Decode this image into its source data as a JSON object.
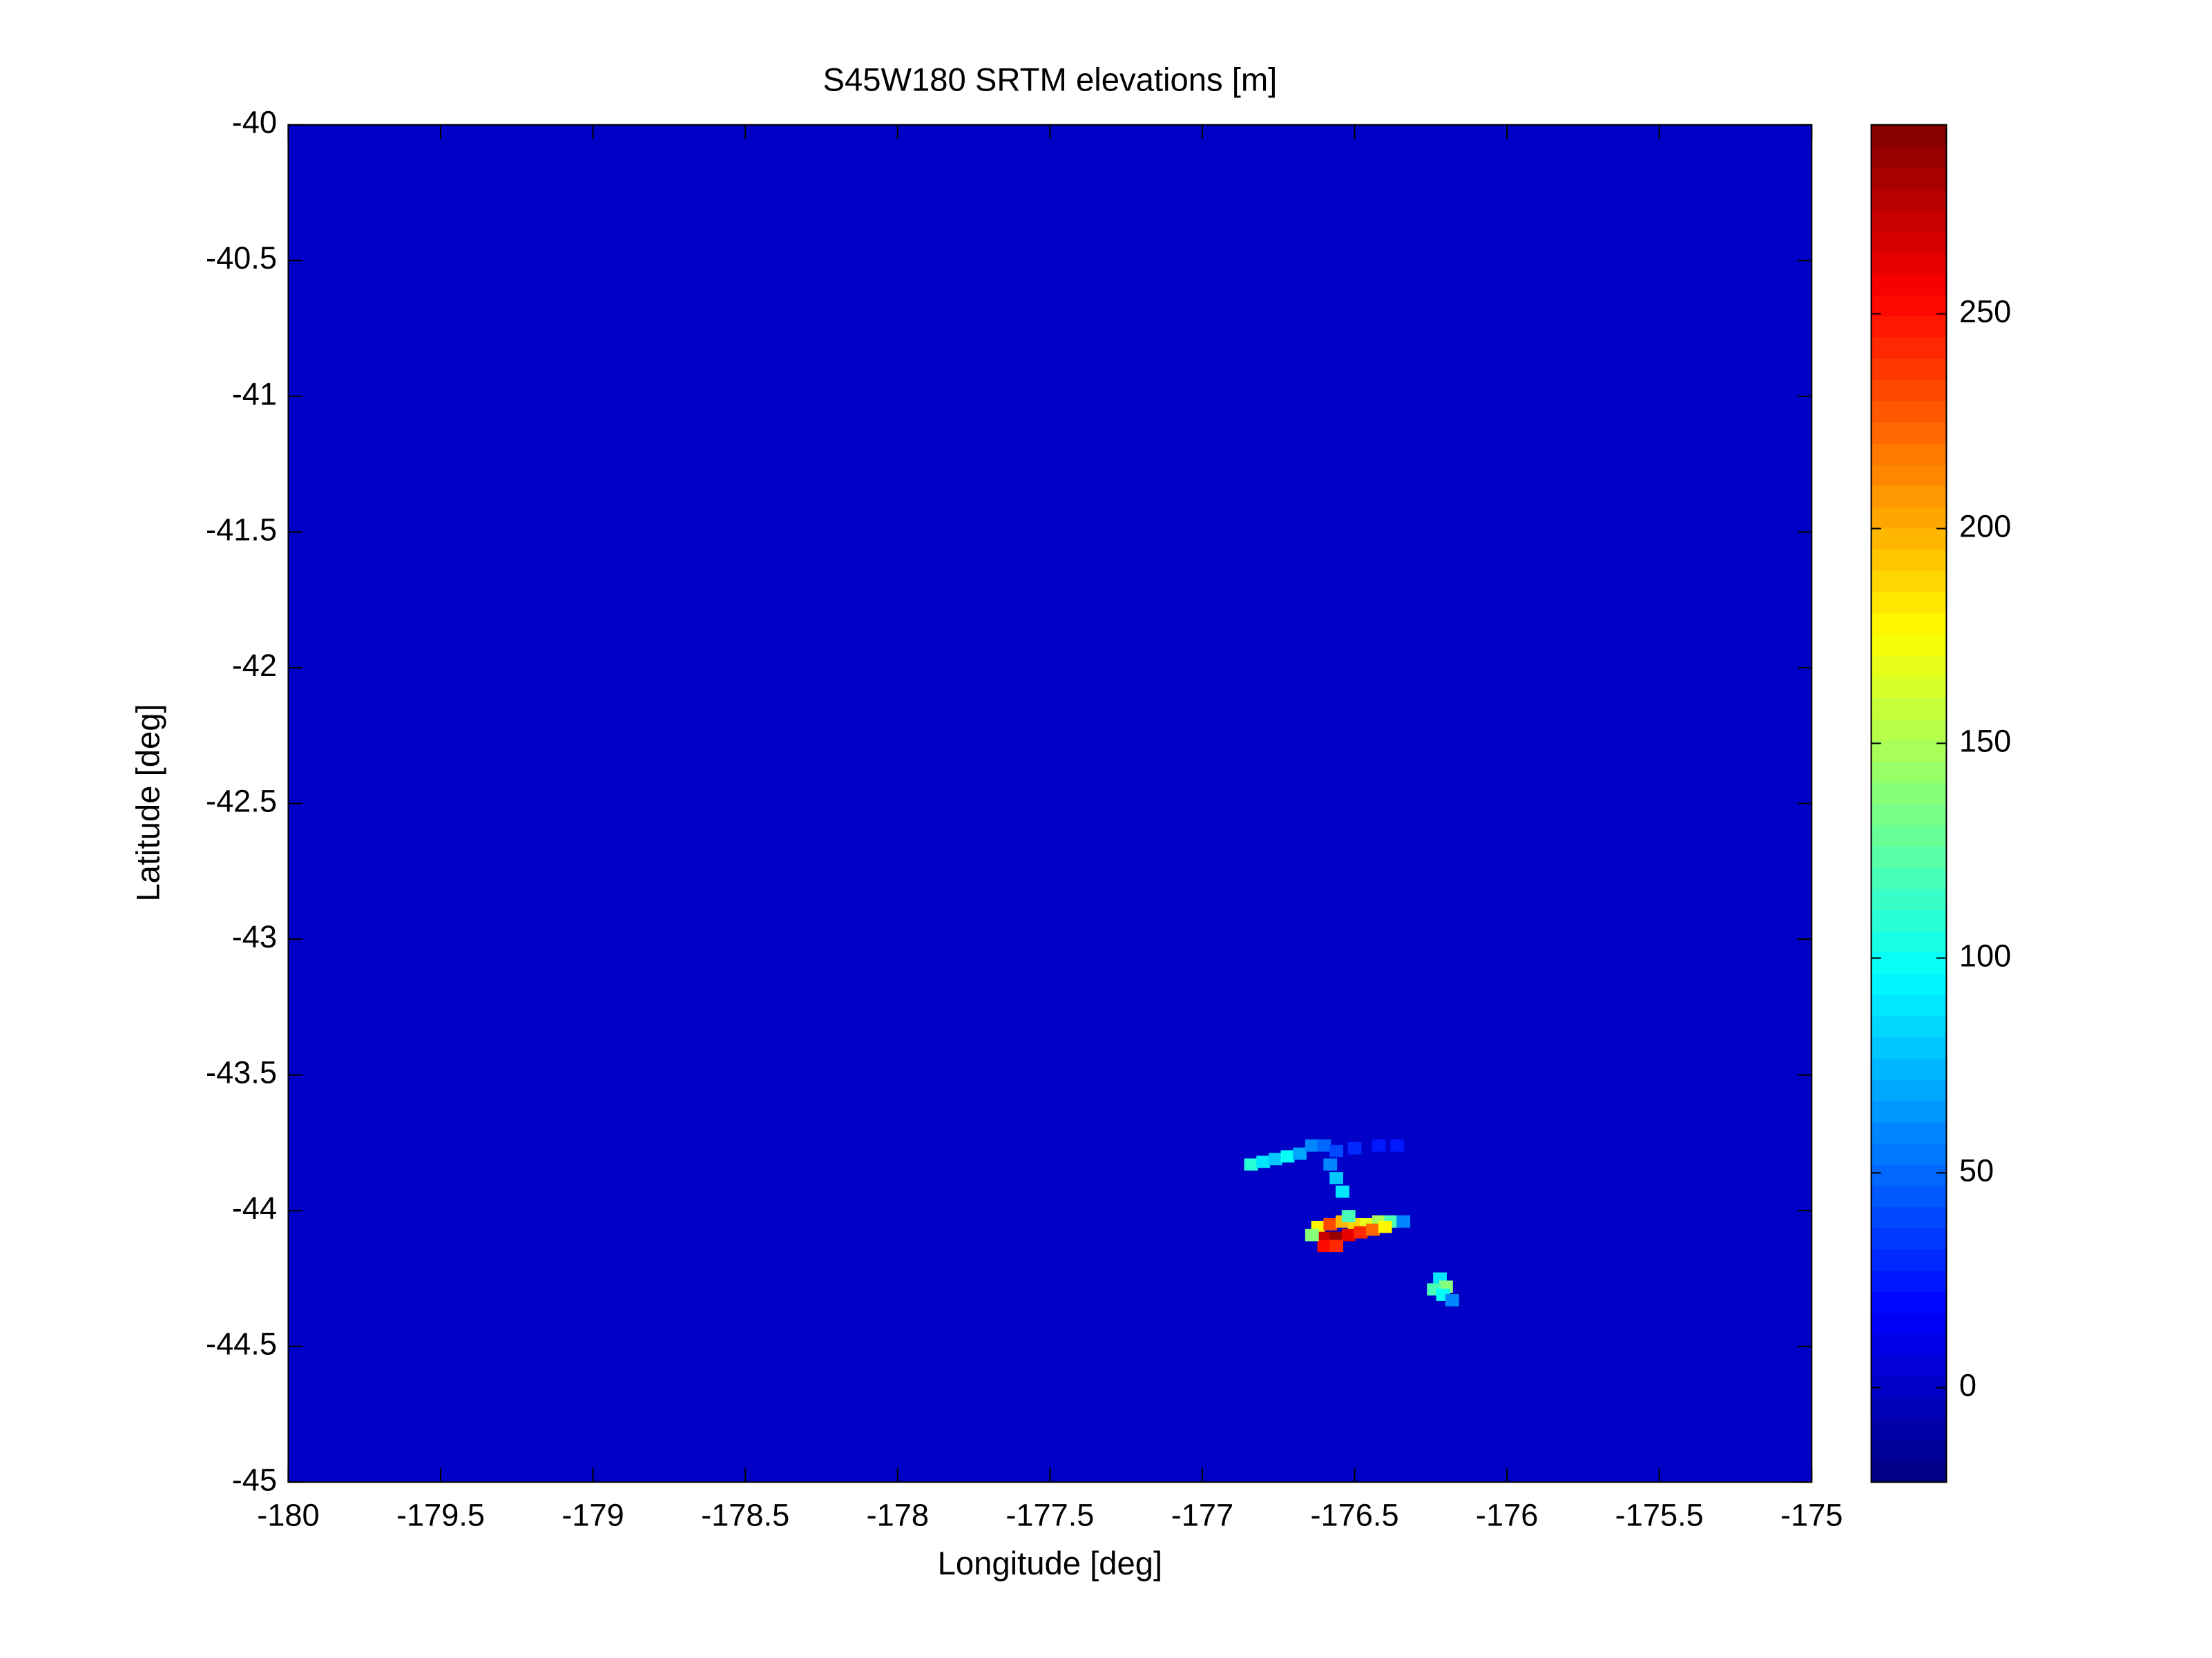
{
  "chart_data": {
    "type": "heatmap",
    "title": "S45W180 SRTM elevations [m]",
    "xlabel": "Longitude [deg]",
    "ylabel": "Latitude [deg]",
    "xlim": [
      -180,
      -175
    ],
    "ylim": [
      -45,
      -40
    ],
    "xticks": [
      -180,
      -179.5,
      -179,
      -178.5,
      -178,
      -177.5,
      -177,
      -176.5,
      -176,
      -175.5,
      -175
    ],
    "yticks": [
      -40,
      -40.5,
      -41,
      -41.5,
      -42,
      -42.5,
      -43,
      -43.5,
      -44,
      -44.5,
      -45
    ],
    "colormap": "jet",
    "clim": [
      -22,
      294
    ],
    "cticks": [
      0,
      50,
      100,
      150,
      200,
      250
    ],
    "fill_value": 0,
    "x": [
      -176.62,
      -176.58,
      -176.54,
      -176.5,
      -176.46,
      -176.42,
      -176.38,
      -176.34,
      -176.6,
      -176.56,
      -176.52,
      -176.48,
      -176.44,
      -176.4,
      -176.6,
      -176.56,
      -176.64,
      -176.52,
      -176.84,
      -176.8,
      -176.76,
      -176.72,
      -176.68,
      -176.64,
      -176.6,
      -176.56,
      -176.5,
      -176.42,
      -176.36,
      -176.58,
      -176.56,
      -176.54,
      -176.22,
      -176.2,
      -176.24,
      -176.21,
      -176.18
    ],
    "y": [
      -44.06,
      -44.05,
      -44.04,
      -44.05,
      -44.05,
      -44.04,
      -44.04,
      -44.04,
      -44.1,
      -44.1,
      -44.09,
      -44.08,
      -44.07,
      -44.06,
      -44.13,
      -44.13,
      -44.09,
      -44.02,
      -43.83,
      -43.82,
      -43.81,
      -43.8,
      -43.79,
      -43.76,
      -43.76,
      -43.78,
      -43.77,
      -43.76,
      -43.76,
      -43.83,
      -43.88,
      -43.93,
      -44.25,
      -44.28,
      -44.29,
      -44.31,
      -44.33
    ],
    "values": [
      180,
      230,
      200,
      190,
      170,
      150,
      120,
      60,
      270,
      285,
      260,
      240,
      220,
      180,
      250,
      240,
      140,
      120,
      110,
      90,
      80,
      100,
      70,
      60,
      50,
      40,
      30,
      25,
      25,
      60,
      80,
      90,
      90,
      140,
      120,
      100,
      60
    ]
  }
}
